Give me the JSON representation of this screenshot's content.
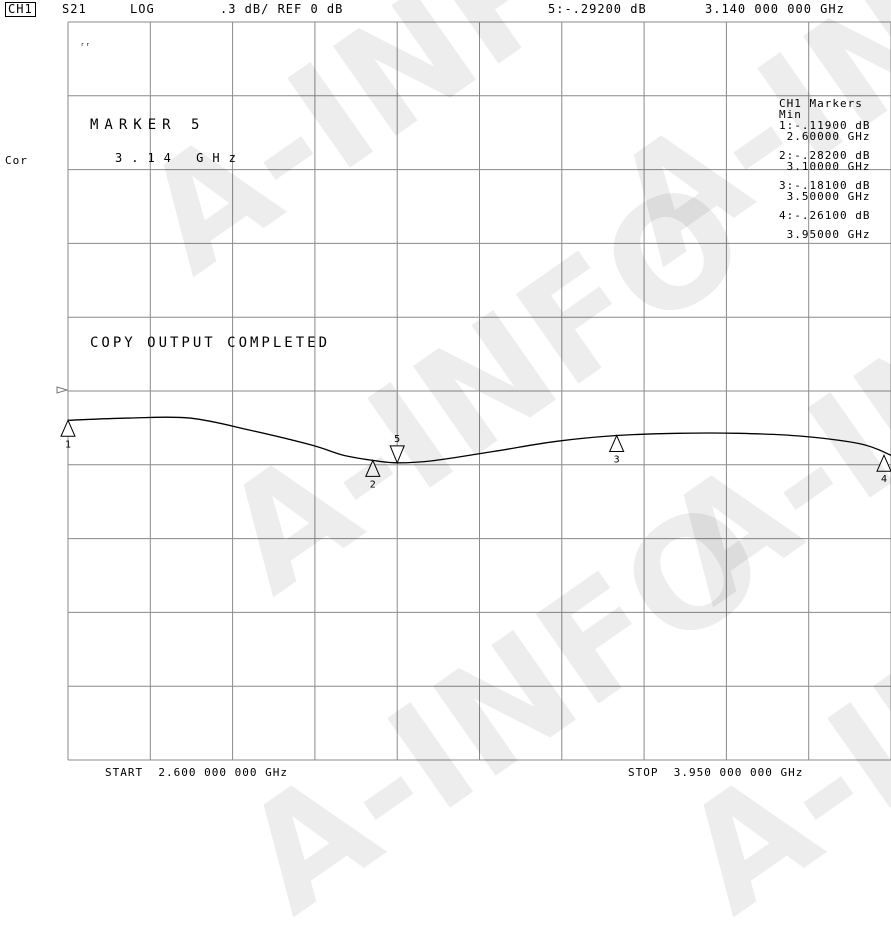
{
  "header": {
    "channel": "CH1",
    "param": "S21",
    "format": "LOG",
    "scale": ".3 dB/ REF 0 dB",
    "active_marker_readout": "5:-.29200 dB",
    "active_marker_freq": "3.140 000 000 GHz"
  },
  "side": {
    "cor": "Cor",
    "small_mark": "ʳʳ"
  },
  "marker_box": {
    "title": "MARKER 5",
    "freq": "3.14 GHz"
  },
  "message": "COPY OUTPUT COMPLETED",
  "marker_list": [
    "CH1 Markers",
    "Min",
    "1:-.11900 dB",
    " 2.60000 GHz",
    "",
    "2:-.28200 dB",
    " 3.10000 GHz",
    "",
    "3:-.18100 dB",
    " 3.50000 GHz",
    "",
    "4:-.26100 dB",
    "",
    " 3.95000 GHz"
  ],
  "footer": {
    "start": "START  2.600 000 000 GHz",
    "stop": "STOP  3.950 000 000 GHz"
  },
  "watermark": "A-INFO",
  "chart_data": {
    "type": "line",
    "x_unit": "GHz",
    "y_unit": "dB",
    "xlim": [
      2.6,
      3.95
    ],
    "ylim": [
      -1.5,
      1.5
    ],
    "reference_db": 0,
    "scale_db_per_div": 0.3,
    "grid": true,
    "series": [
      {
        "x": [
          2.6,
          2.7,
          2.8,
          2.9,
          3.0,
          3.05,
          3.1,
          3.14,
          3.2,
          3.3,
          3.4,
          3.5,
          3.6,
          3.7,
          3.8,
          3.9,
          3.95
        ],
        "y": [
          -0.119,
          -0.11,
          -0.11,
          -0.16,
          -0.22,
          -0.26,
          -0.282,
          -0.292,
          -0.283,
          -0.245,
          -0.205,
          -0.181,
          -0.172,
          -0.172,
          -0.183,
          -0.215,
          -0.261
        ]
      }
    ],
    "markers": [
      {
        "label": "1",
        "x": 2.6,
        "y": -0.119
      },
      {
        "label": "2",
        "x": 3.1,
        "y": -0.282
      },
      {
        "label": "3",
        "x": 3.5,
        "y": -0.181
      },
      {
        "label": "4",
        "x": 3.95,
        "y": -0.261
      },
      {
        "label": "5",
        "x": 3.14,
        "y": -0.292,
        "active": true
      }
    ]
  }
}
